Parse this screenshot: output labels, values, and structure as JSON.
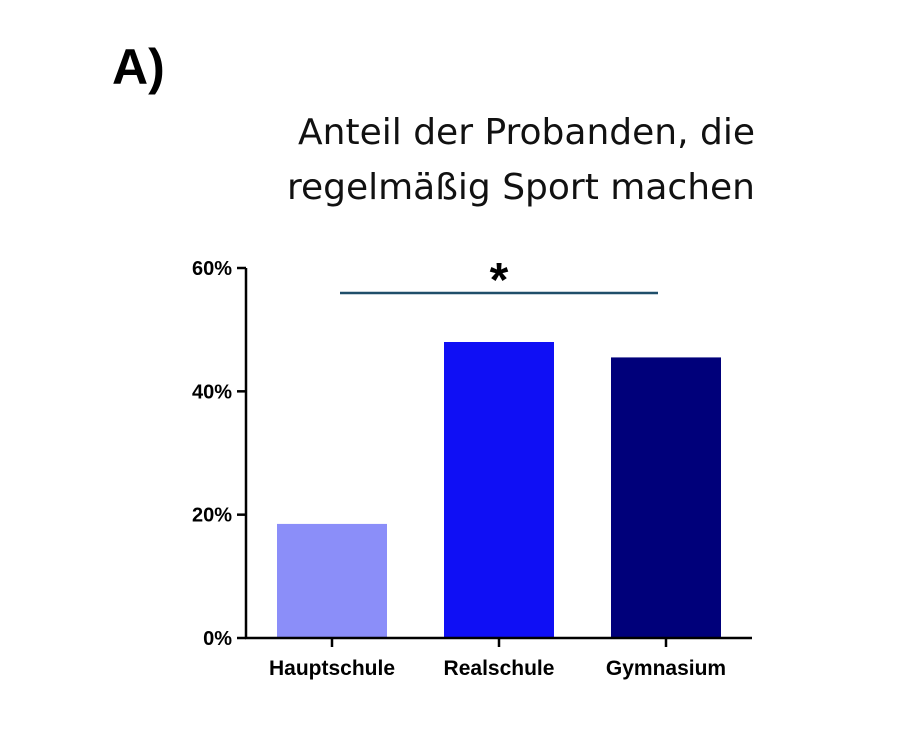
{
  "panel_label": "A)",
  "chart_data": {
    "type": "bar",
    "title_lines": [
      "Anteil der Probanden, die",
      "regelmäßig Sport machen"
    ],
    "categories": [
      "Hauptschule",
      "Realschule",
      "Gymnasium"
    ],
    "values": [
      18.5,
      48,
      45.5
    ],
    "value_unit": "%",
    "ylim": [
      0,
      60
    ],
    "yticks": [
      {
        "value": 0,
        "label": "0%"
      },
      {
        "value": 20,
        "label": "20%"
      },
      {
        "value": 40,
        "label": "40%"
      },
      {
        "value": 60,
        "label": "60%"
      }
    ],
    "bar_colors": [
      "#8b8ef9",
      "#0f0ff5",
      "#00007a"
    ],
    "significance": {
      "from_category": 0,
      "to_category": 2,
      "symbol": "*",
      "line_color": "#1f4e6a"
    },
    "xlabel": "",
    "ylabel": "",
    "grid": false,
    "legend": "none"
  }
}
